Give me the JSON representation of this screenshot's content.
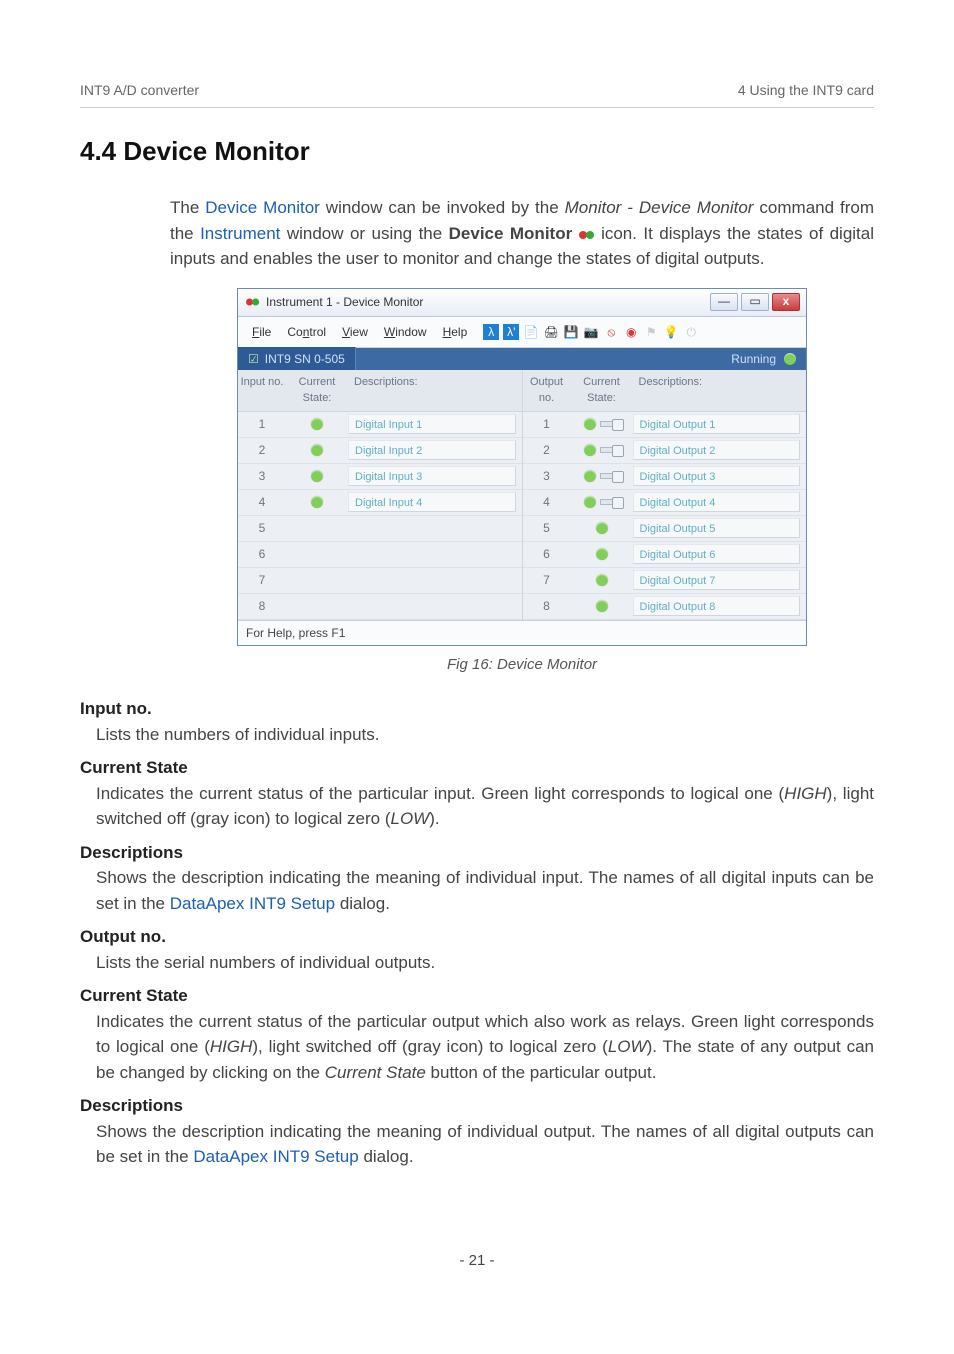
{
  "running_head": {
    "left": "INT9 A/D converter",
    "right": "4 Using the INT9 card"
  },
  "heading": "4.4 Device Monitor",
  "intro_parts": {
    "t1": "The ",
    "link1": "Device Monitor",
    "t2": " window can be invoked by the ",
    "it1": "Monitor - Device Monitor",
    "t3": " command from the ",
    "link2": "Instrument",
    "t4": " window or using the ",
    "bold1": "Device Monitor ",
    "t5": " icon. It displays the states of digital inputs and enables the user to monitor and change the states of digital outputs."
  },
  "window": {
    "title": "Instrument 1 - Device Monitor",
    "menus": {
      "file": "File",
      "control": "Control",
      "view": "View",
      "window": "Window",
      "help": "Help"
    },
    "tab_label": "INT9 SN 0-505",
    "running_label": "Running",
    "running_led_color": "#7fcf58",
    "headers_in": {
      "no": "Input no.",
      "state": "Current State:",
      "desc": "Descriptions:"
    },
    "headers_out": {
      "no": "Output no.",
      "state": "Current State:",
      "desc": "Descriptions:"
    },
    "led_color_on": "#7fcf58",
    "led_color_off": "#c9c9c9",
    "row_numbers": [
      1,
      2,
      3,
      4,
      5,
      6,
      7,
      8
    ],
    "inputs": [
      {
        "n": 1,
        "on": true,
        "desc": "Digital Input 1"
      },
      {
        "n": 2,
        "on": true,
        "desc": "Digital Input 2"
      },
      {
        "n": 3,
        "on": true,
        "desc": "Digital Input 3"
      },
      {
        "n": 4,
        "on": true,
        "desc": "Digital Input 4"
      },
      {
        "n": 5,
        "on": null,
        "desc": ""
      },
      {
        "n": 6,
        "on": null,
        "desc": ""
      },
      {
        "n": 7,
        "on": null,
        "desc": ""
      },
      {
        "n": 8,
        "on": null,
        "desc": ""
      }
    ],
    "outputs": [
      {
        "n": 1,
        "on": true,
        "toggle": true,
        "desc": "Digital Output 1"
      },
      {
        "n": 2,
        "on": true,
        "toggle": true,
        "desc": "Digital Output 2"
      },
      {
        "n": 3,
        "on": true,
        "toggle": true,
        "desc": "Digital Output 3"
      },
      {
        "n": 4,
        "on": true,
        "toggle": true,
        "desc": "Digital Output 4"
      },
      {
        "n": 5,
        "on": true,
        "toggle": null,
        "desc": "Digital Output 5"
      },
      {
        "n": 6,
        "on": true,
        "toggle": null,
        "desc": "Digital Output 6"
      },
      {
        "n": 7,
        "on": true,
        "toggle": null,
        "desc": "Digital Output 7"
      },
      {
        "n": 8,
        "on": true,
        "toggle": null,
        "desc": "Digital Output 8"
      }
    ],
    "statusbar": "For Help, press F1"
  },
  "fig_caption": "Fig 16: Device Monitor",
  "sections": {
    "s1_t": "Input no.",
    "s1_b": "Lists the numbers of individual inputs.",
    "s2_t": "Current State",
    "s2_b_pre": "Indicates the current status of the particular input. Green light corresponds to logical one (",
    "s2_b_i1": "HIGH",
    "s2_b_mid": "), light switched off (gray icon) to logical zero (",
    "s2_b_i2": "LOW",
    "s2_b_post": ").",
    "s3_t": "Descriptions",
    "s3_b_pre": "Shows the description indicating the meaning of individual input. The names of all digital inputs can be set in the ",
    "s3_b_link": "DataApex INT9 Setup",
    "s3_b_post": " dialog.",
    "s4_t": "Output no.",
    "s4_b": "Lists the serial numbers of individual outputs.",
    "s5_t": "Current State",
    "s5_b_pre": "Indicates the current status of the particular output which also work as relays. Green light corresponds to logical one (",
    "s5_b_i1": "HIGH",
    "s5_b_mid": "), light switched off (gray icon) to logical zero (",
    "s5_b_i2": "LOW",
    "s5_b_mid2": "). The state of any output can be changed by clicking on the ",
    "s5_b_i3": "Current State",
    "s5_b_post": " button of the particular output.",
    "s6_t": "Descriptions",
    "s6_b_pre": "Shows the description indicating the meaning of individual output. The names of all digital outputs can be set in the ",
    "s6_b_link": "DataApex INT9 Setup",
    "s6_b_post": " dialog."
  },
  "pagenum": "- 21 -"
}
